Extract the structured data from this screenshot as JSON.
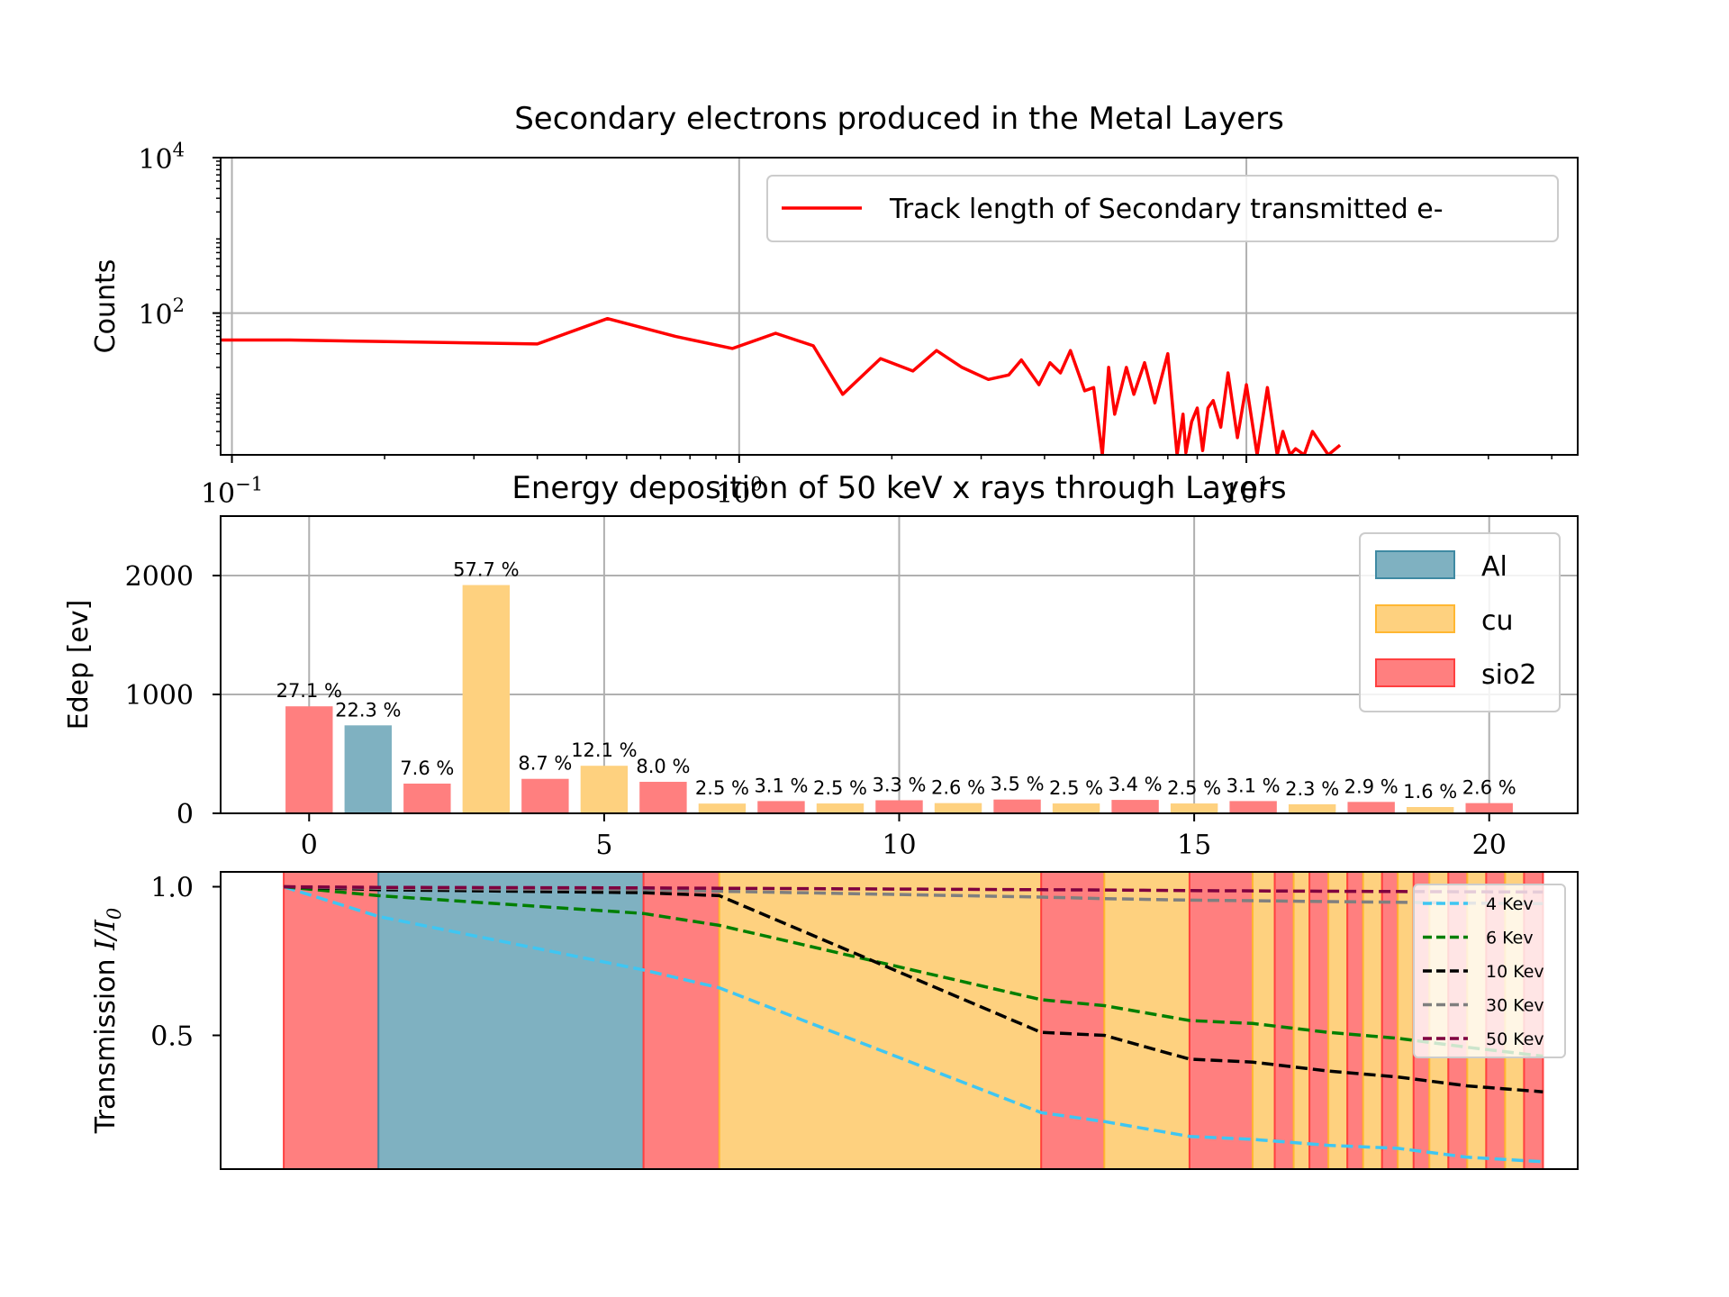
{
  "chart_data": [
    {
      "type": "line",
      "title": "Secondary electrons produced in the Metal Layers",
      "xlabel": "",
      "ylabel": "Counts",
      "xscale": "log",
      "yscale": "log",
      "xlim": [
        0.095,
        45
      ],
      "ylim": [
        1.5,
        10000
      ],
      "grid": true,
      "legend_position": "upper-right",
      "xticks": [
        {
          "value": 0.1,
          "base": "10",
          "exp": "−1"
        },
        {
          "value": 1,
          "base": "10",
          "exp": "0"
        },
        {
          "value": 10,
          "base": "10",
          "exp": "1"
        }
      ],
      "yticks": [
        {
          "value": 100,
          "base": "10",
          "exp": "2"
        },
        {
          "value": 10000,
          "base": "10",
          "exp": "4"
        }
      ],
      "series": [
        {
          "name": "Track length of Secondary transmitted e-",
          "color": "#ff0000",
          "x": [
            0.095,
            0.13,
            0.4,
            0.55,
            0.75,
            0.97,
            1.18,
            1.4,
            1.6,
            1.9,
            2.2,
            2.45,
            2.75,
            3.1,
            3.4,
            3.6,
            3.9,
            4.1,
            4.3,
            4.5,
            4.8,
            5.0,
            5.2,
            5.35,
            5.5,
            5.8,
            6.0,
            6.3,
            6.6,
            7.0,
            7.3,
            7.5,
            7.6,
            7.8,
            8.0,
            8.2,
            8.4,
            8.6,
            8.9,
            9.2,
            9.6,
            10.0,
            10.5,
            11.0,
            11.5,
            11.8,
            12.2,
            12.5,
            13.0,
            13.5,
            14.5,
            15.3
          ],
          "y": [
            45,
            45,
            40,
            85,
            50,
            35,
            55,
            38,
            9,
            26,
            18,
            33,
            20,
            14,
            16,
            25,
            12,
            23,
            17,
            33,
            10,
            11,
            1.5,
            20,
            5,
            20,
            9,
            23,
            7,
            30,
            1.5,
            5,
            1.6,
            4,
            6,
            1.7,
            6,
            7.5,
            3.4,
            17,
            2.5,
            12,
            1.5,
            11,
            1.5,
            3,
            1.5,
            1.8,
            1.5,
            3,
            1.5,
            2
          ]
        }
      ]
    },
    {
      "type": "bar",
      "title": "Energy deposition of 50 keV x rays through Layers",
      "xlabel": "",
      "ylabel": "Edep [ev]",
      "xlim": [
        -1.5,
        21.5
      ],
      "ylim": [
        0,
        2500
      ],
      "xticks": [
        0,
        5,
        10,
        15,
        20
      ],
      "yticks": [
        0,
        1000,
        2000
      ],
      "grid": true,
      "legend_position": "upper-right",
      "legend": [
        {
          "name": "Al",
          "color": "#7fb1c1",
          "edge": "#3f8aa3"
        },
        {
          "name": "cu",
          "color": "#fed17f",
          "edge": "#ffb732"
        },
        {
          "name": "sio2",
          "color": "#ff7f7f",
          "edge": "#ff4040"
        }
      ],
      "bars": [
        {
          "x": 0,
          "value": 900,
          "material": "sio2",
          "label": "27.1 %"
        },
        {
          "x": 1,
          "value": 740,
          "material": "Al",
          "label": "22.3 %"
        },
        {
          "x": 2,
          "value": 250,
          "material": "sio2",
          "label": "7.6 %"
        },
        {
          "x": 3,
          "value": 1920,
          "material": "cu",
          "label": "57.7 %"
        },
        {
          "x": 4,
          "value": 290,
          "material": "sio2",
          "label": "8.7 %"
        },
        {
          "x": 5,
          "value": 400,
          "material": "cu",
          "label": "12.1 %"
        },
        {
          "x": 6,
          "value": 265,
          "material": "sio2",
          "label": "8.0 %"
        },
        {
          "x": 7,
          "value": 82,
          "material": "cu",
          "label": "2.5 %"
        },
        {
          "x": 8,
          "value": 103,
          "material": "sio2",
          "label": "3.1 %"
        },
        {
          "x": 9,
          "value": 83,
          "material": "cu",
          "label": "2.5 %"
        },
        {
          "x": 10,
          "value": 110,
          "material": "sio2",
          "label": "3.3 %"
        },
        {
          "x": 11,
          "value": 86,
          "material": "cu",
          "label": "2.6 %"
        },
        {
          "x": 12,
          "value": 116,
          "material": "sio2",
          "label": "3.5 %"
        },
        {
          "x": 13,
          "value": 83,
          "material": "cu",
          "label": "2.5 %"
        },
        {
          "x": 14,
          "value": 113,
          "material": "sio2",
          "label": "3.4 %"
        },
        {
          "x": 15,
          "value": 83,
          "material": "cu",
          "label": "2.5 %"
        },
        {
          "x": 16,
          "value": 103,
          "material": "sio2",
          "label": "3.1 %"
        },
        {
          "x": 17,
          "value": 76,
          "material": "cu",
          "label": "2.3 %"
        },
        {
          "x": 18,
          "value": 96,
          "material": "sio2",
          "label": "2.9 %"
        },
        {
          "x": 19,
          "value": 53,
          "material": "cu",
          "label": "1.6 %"
        },
        {
          "x": 20,
          "value": 86,
          "material": "sio2",
          "label": "2.6 %"
        }
      ]
    },
    {
      "type": "area",
      "title": "",
      "xlabel": "",
      "ylabel_text": "Transmission ",
      "ylabel_math": "I/I",
      "ylabel_sub": "0",
      "xlim": [
        0,
        21.5
      ],
      "ylim": [
        0.05,
        1.05
      ],
      "yticks": [
        0.5,
        1.0
      ],
      "ytick_labels": [
        "0.5",
        "1.0"
      ],
      "grid": false,
      "legend_position": "right",
      "layers": [
        {
          "x0": 1.0,
          "x1": 2.5,
          "material": "sio2"
        },
        {
          "x0": 2.5,
          "x1": 6.7,
          "material": "Al"
        },
        {
          "x0": 6.7,
          "x1": 7.9,
          "material": "sio2"
        },
        {
          "x0": 7.9,
          "x1": 13.0,
          "material": "cu"
        },
        {
          "x0": 13.0,
          "x1": 14.0,
          "material": "sio2"
        },
        {
          "x0": 14.0,
          "x1": 15.35,
          "material": "cu"
        },
        {
          "x0": 15.35,
          "x1": 16.35,
          "material": "sio2"
        },
        {
          "x0": 16.35,
          "x1": 16.7,
          "material": "cu"
        },
        {
          "x0": 16.7,
          "x1": 17.0,
          "material": "sio2"
        },
        {
          "x0": 17.0,
          "x1": 17.25,
          "material": "cu"
        },
        {
          "x0": 17.25,
          "x1": 17.55,
          "material": "sio2"
        },
        {
          "x0": 17.55,
          "x1": 17.85,
          "material": "cu"
        },
        {
          "x0": 17.85,
          "x1": 18.1,
          "material": "sio2"
        },
        {
          "x0": 18.1,
          "x1": 18.4,
          "material": "cu"
        },
        {
          "x0": 18.4,
          "x1": 18.65,
          "material": "sio2"
        },
        {
          "x0": 18.65,
          "x1": 18.9,
          "material": "cu"
        },
        {
          "x0": 18.9,
          "x1": 19.15,
          "material": "sio2"
        },
        {
          "x0": 19.15,
          "x1": 19.45,
          "material": "cu"
        },
        {
          "x0": 19.45,
          "x1": 19.75,
          "material": "sio2"
        },
        {
          "x0": 19.75,
          "x1": 20.05,
          "material": "cu"
        },
        {
          "x0": 20.05,
          "x1": 20.35,
          "material": "sio2"
        },
        {
          "x0": 20.35,
          "x1": 20.65,
          "material": "cu"
        },
        {
          "x0": 20.65,
          "x1": 20.95,
          "material": "sio2"
        }
      ],
      "series": [
        {
          "name": "4 Kev",
          "color": "#3fc6f2",
          "x": [
            1.0,
            2.5,
            6.7,
            7.9,
            13.0,
            14.0,
            15.35,
            16.35,
            17.55,
            18.65,
            19.75,
            20.95
          ],
          "y": [
            1.0,
            0.9,
            0.72,
            0.66,
            0.24,
            0.21,
            0.16,
            0.15,
            0.13,
            0.12,
            0.09,
            0.075
          ]
        },
        {
          "name": "6 Kev",
          "color": "#007f00",
          "x": [
            1.0,
            2.5,
            6.7,
            7.9,
            13.0,
            14.0,
            15.35,
            16.35,
            17.55,
            18.65,
            19.75,
            20.95
          ],
          "y": [
            1.0,
            0.97,
            0.91,
            0.87,
            0.62,
            0.6,
            0.55,
            0.54,
            0.51,
            0.49,
            0.46,
            0.43
          ]
        },
        {
          "name": "10 Kev",
          "color": "#000000",
          "x": [
            1.0,
            2.5,
            6.7,
            7.9,
            13.0,
            14.0,
            15.35,
            16.35,
            17.55,
            18.65,
            19.75,
            20.95
          ],
          "y": [
            1.0,
            0.99,
            0.98,
            0.97,
            0.51,
            0.5,
            0.42,
            0.41,
            0.38,
            0.36,
            0.33,
            0.31
          ]
        },
        {
          "name": "30 Kev",
          "color": "#7f7f7f",
          "x": [
            1.0,
            2.5,
            6.7,
            7.9,
            13.0,
            14.0,
            15.35,
            16.35,
            17.55,
            18.65,
            19.75,
            20.95
          ],
          "y": [
            1.0,
            0.995,
            0.99,
            0.985,
            0.965,
            0.96,
            0.955,
            0.953,
            0.95,
            0.948,
            0.945,
            0.943
          ]
        },
        {
          "name": "50 Kev",
          "color": "#7f003f",
          "x": [
            1.0,
            2.5,
            6.7,
            7.9,
            13.0,
            14.0,
            15.35,
            16.35,
            17.55,
            18.65,
            19.75,
            20.95
          ],
          "y": [
            1.0,
            0.998,
            0.996,
            0.995,
            0.99,
            0.989,
            0.987,
            0.986,
            0.985,
            0.984,
            0.983,
            0.982
          ]
        }
      ]
    }
  ]
}
